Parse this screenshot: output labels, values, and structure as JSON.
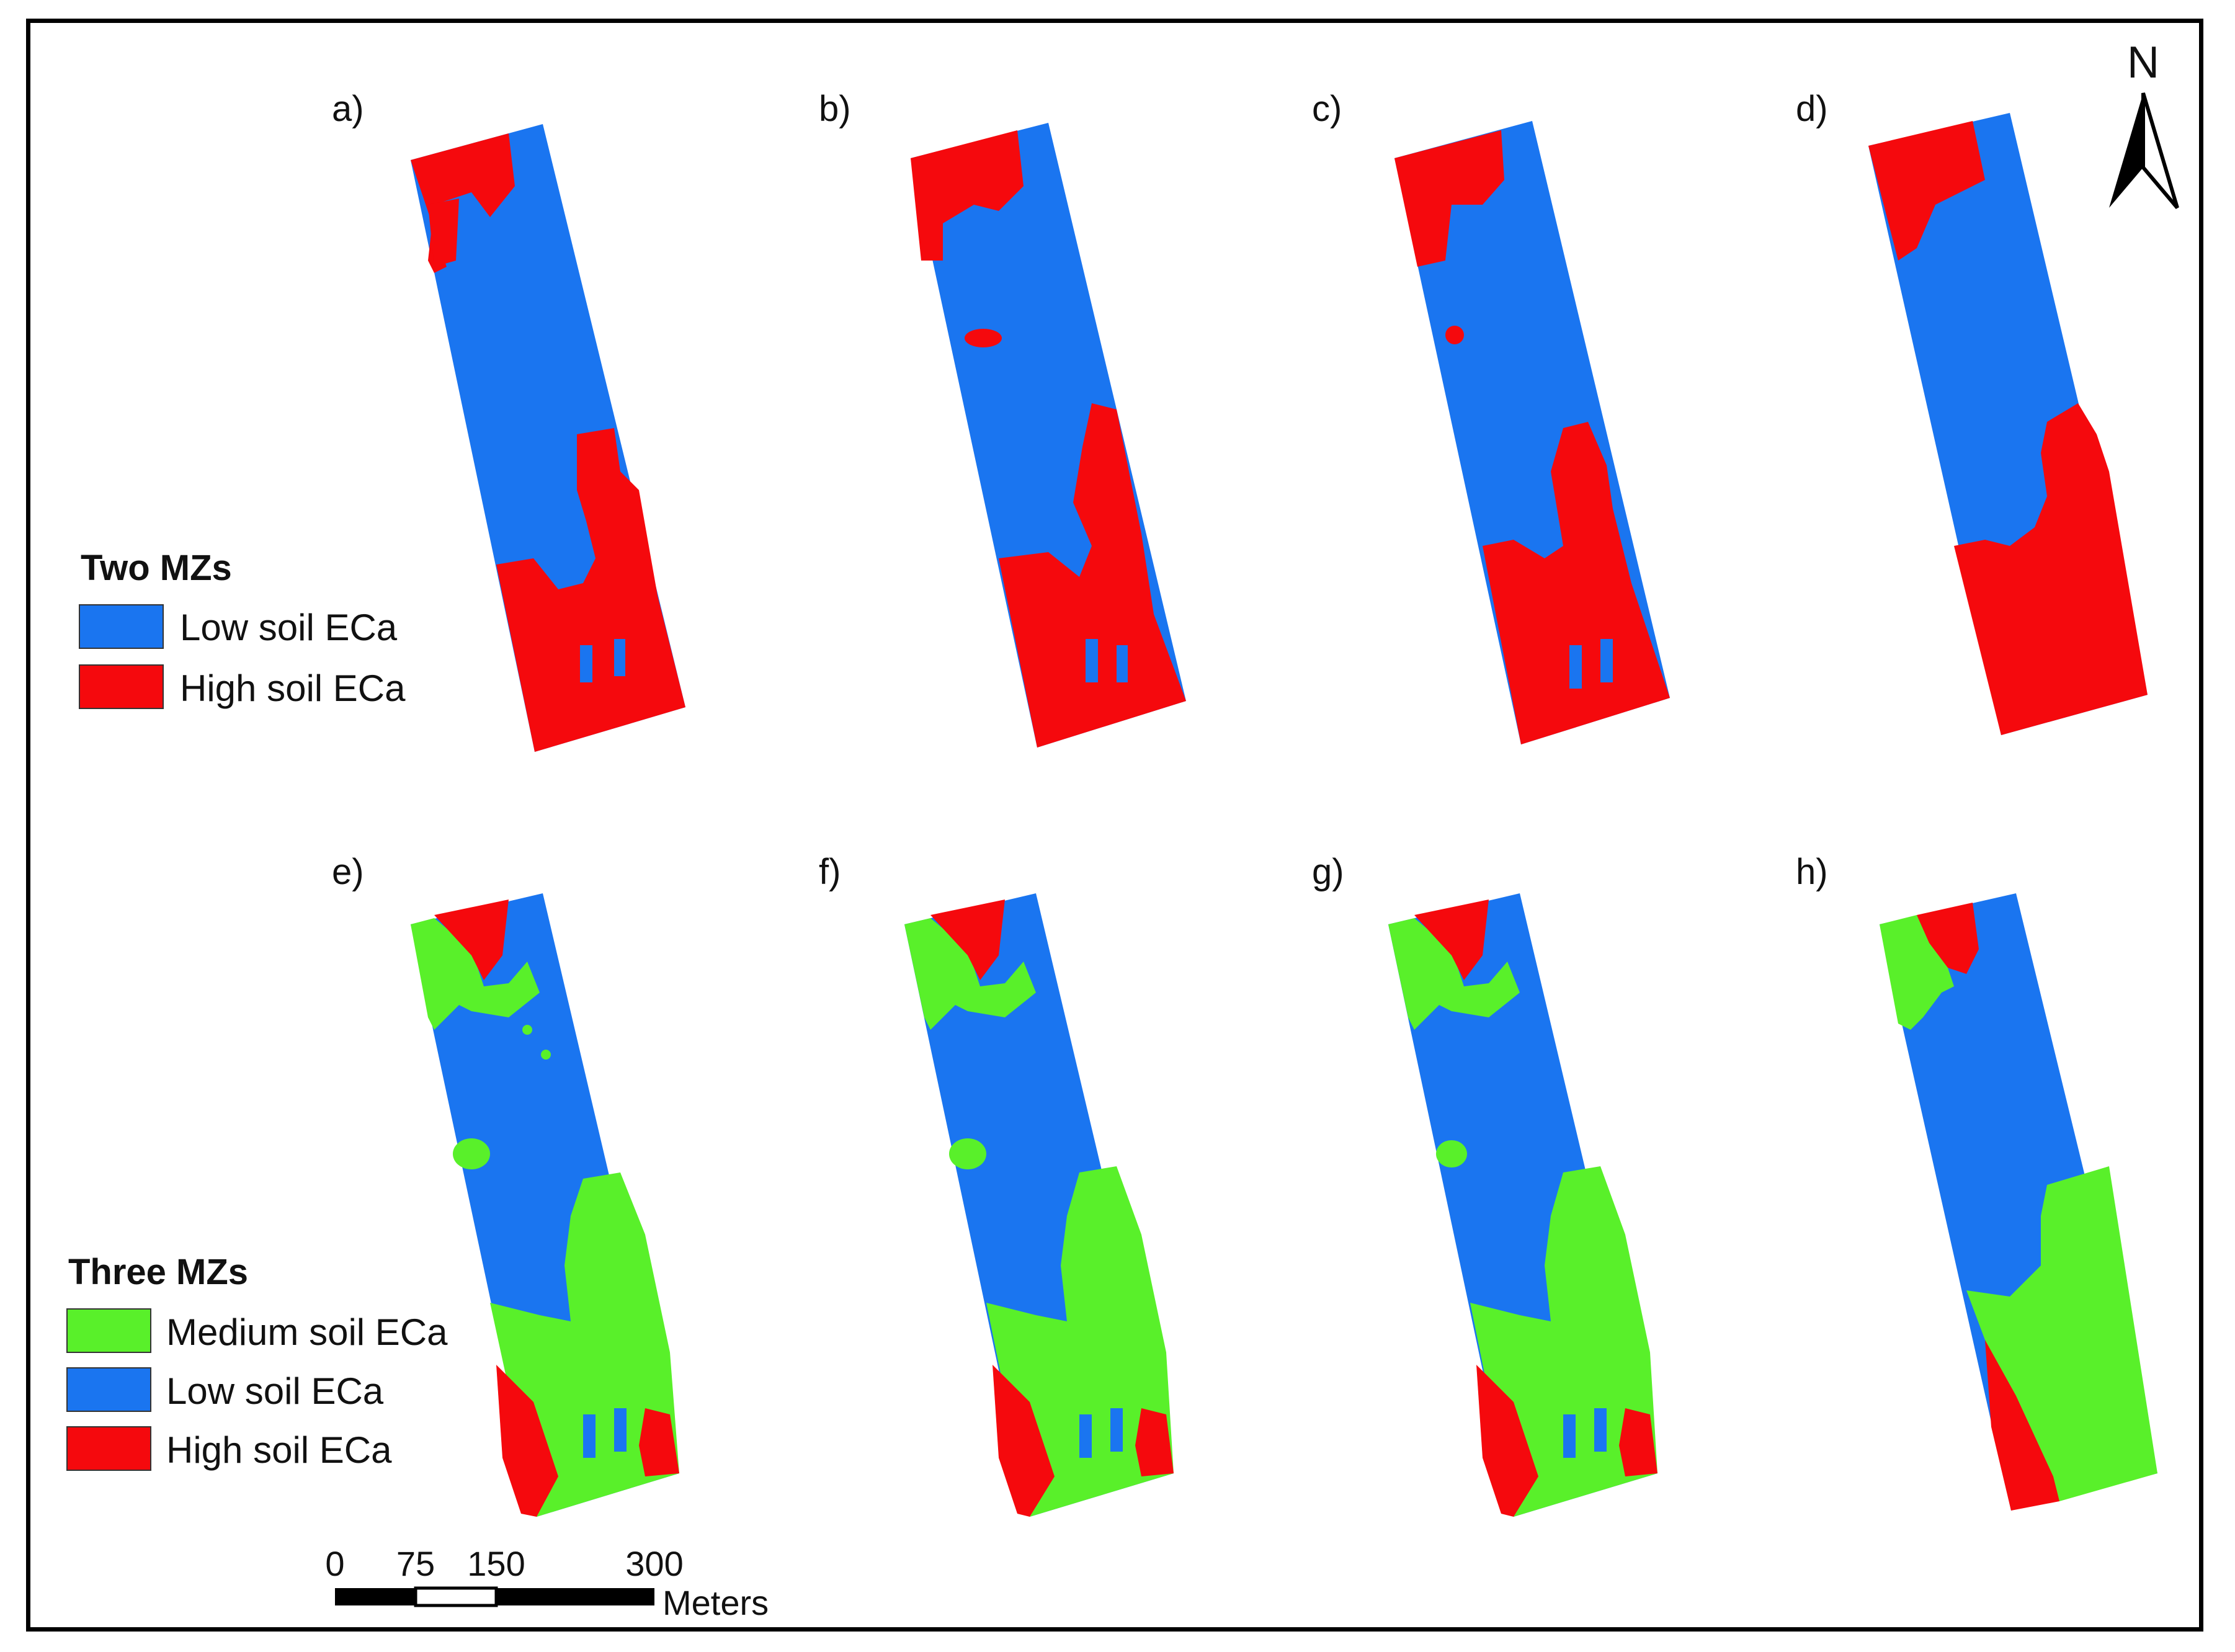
{
  "colors": {
    "low": "#1a75f0",
    "high": "#f5090d",
    "medium": "#59f02a",
    "frame": "#000000"
  },
  "panels": [
    {
      "label": "a)",
      "scheme": "two"
    },
    {
      "label": "b)",
      "scheme": "two"
    },
    {
      "label": "c)",
      "scheme": "two"
    },
    {
      "label": "d)",
      "scheme": "two"
    },
    {
      "label": "e)",
      "scheme": "three"
    },
    {
      "label": "f)",
      "scheme": "three"
    },
    {
      "label": "g)",
      "scheme": "three"
    },
    {
      "label": "h)",
      "scheme": "three"
    }
  ],
  "legend_two": {
    "title": "Two MZs",
    "items": [
      {
        "label": "Low soil ECa",
        "color_key": "low"
      },
      {
        "label": "High soil ECa",
        "color_key": "high"
      }
    ]
  },
  "legend_three": {
    "title": "Three MZs",
    "items": [
      {
        "label": "Medium soil ECa",
        "color_key": "medium"
      },
      {
        "label": "Low soil ECa",
        "color_key": "low"
      },
      {
        "label": "High soil ECa",
        "color_key": "high"
      }
    ]
  },
  "scale_bar": {
    "ticks": [
      "0",
      "75",
      "150",
      "300"
    ],
    "unit": "Meters"
  },
  "north_arrow": {
    "label": "N",
    "icon": "north-arrow-icon"
  }
}
